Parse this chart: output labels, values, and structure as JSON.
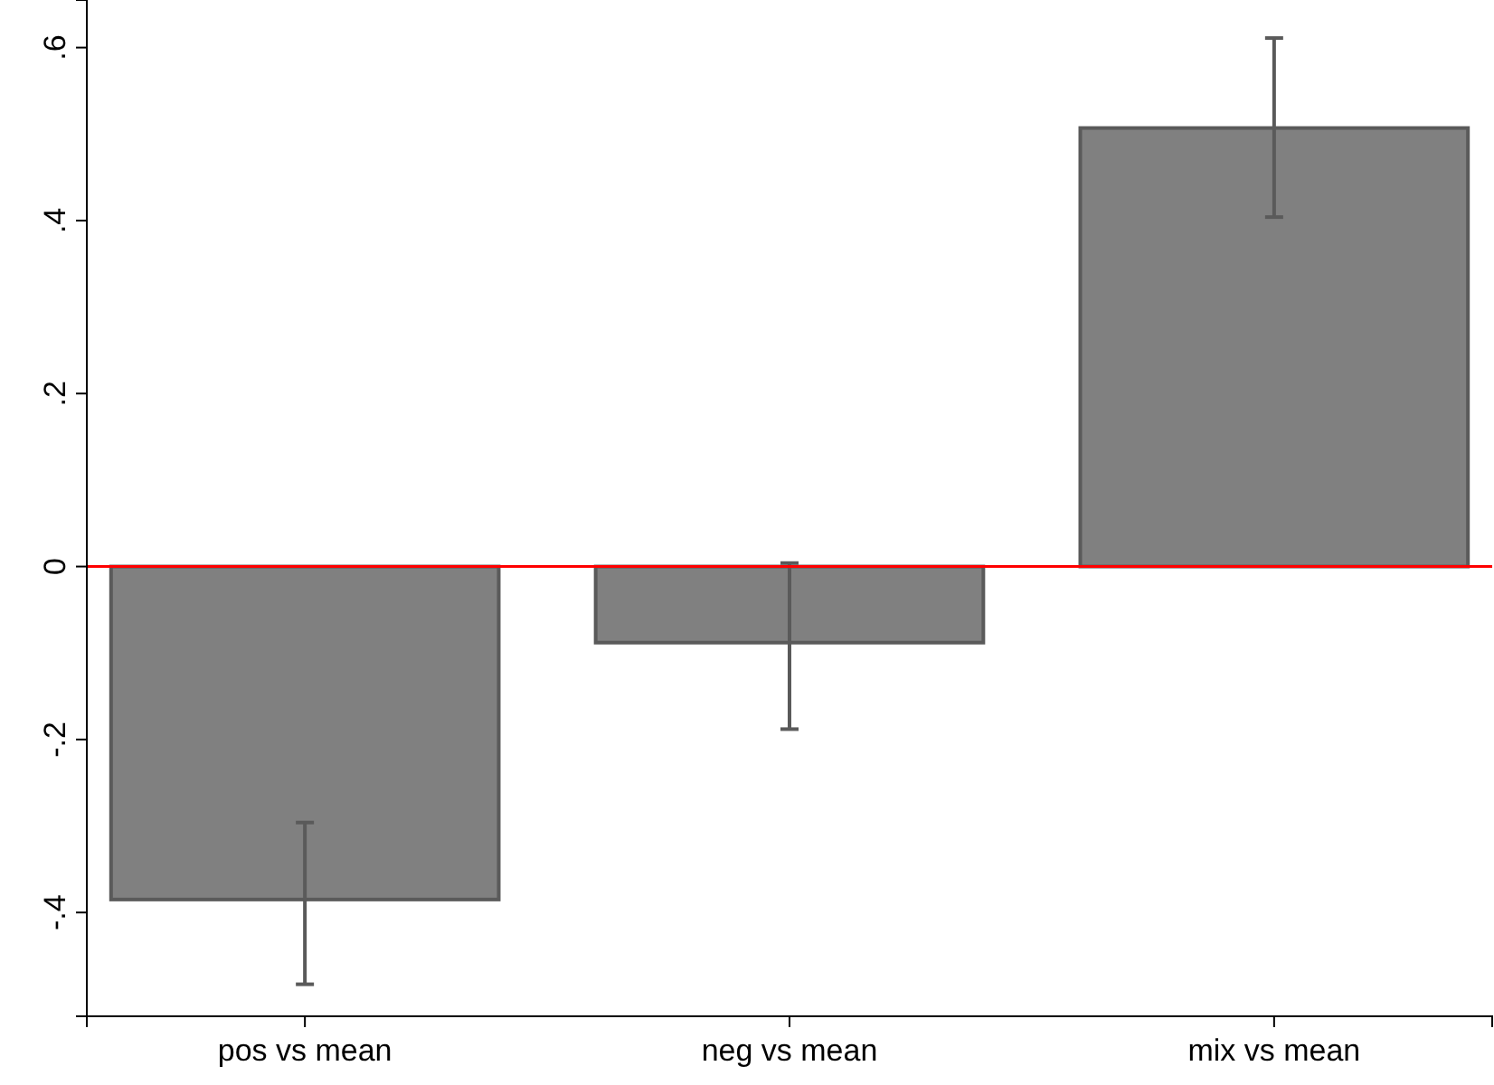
{
  "chart_data": {
    "type": "bar",
    "categories": [
      "pos vs mean",
      "neg vs mean",
      "mix vs mean"
    ],
    "values": [
      -0.385,
      -0.088,
      0.507
    ],
    "errors": [
      [
        -0.483,
        -0.296
      ],
      [
        -0.188,
        0.004
      ],
      [
        0.404,
        0.611
      ]
    ],
    "color": "#808080",
    "ylim": [
      -0.52,
      0.655
    ],
    "yticks": [
      {
        "value": -0.4,
        "label": "-.4"
      },
      {
        "value": -0.2,
        "label": "-.2"
      },
      0,
      {
        "value": 0.2,
        "label": ".2"
      },
      {
        "value": 0.4,
        "label": ".4"
      },
      {
        "value": 0.6,
        "label": ".6"
      }
    ],
    "ref_lines": [
      {
        "axis": "y",
        "value": 0,
        "color": "#ff0000"
      }
    ]
  }
}
